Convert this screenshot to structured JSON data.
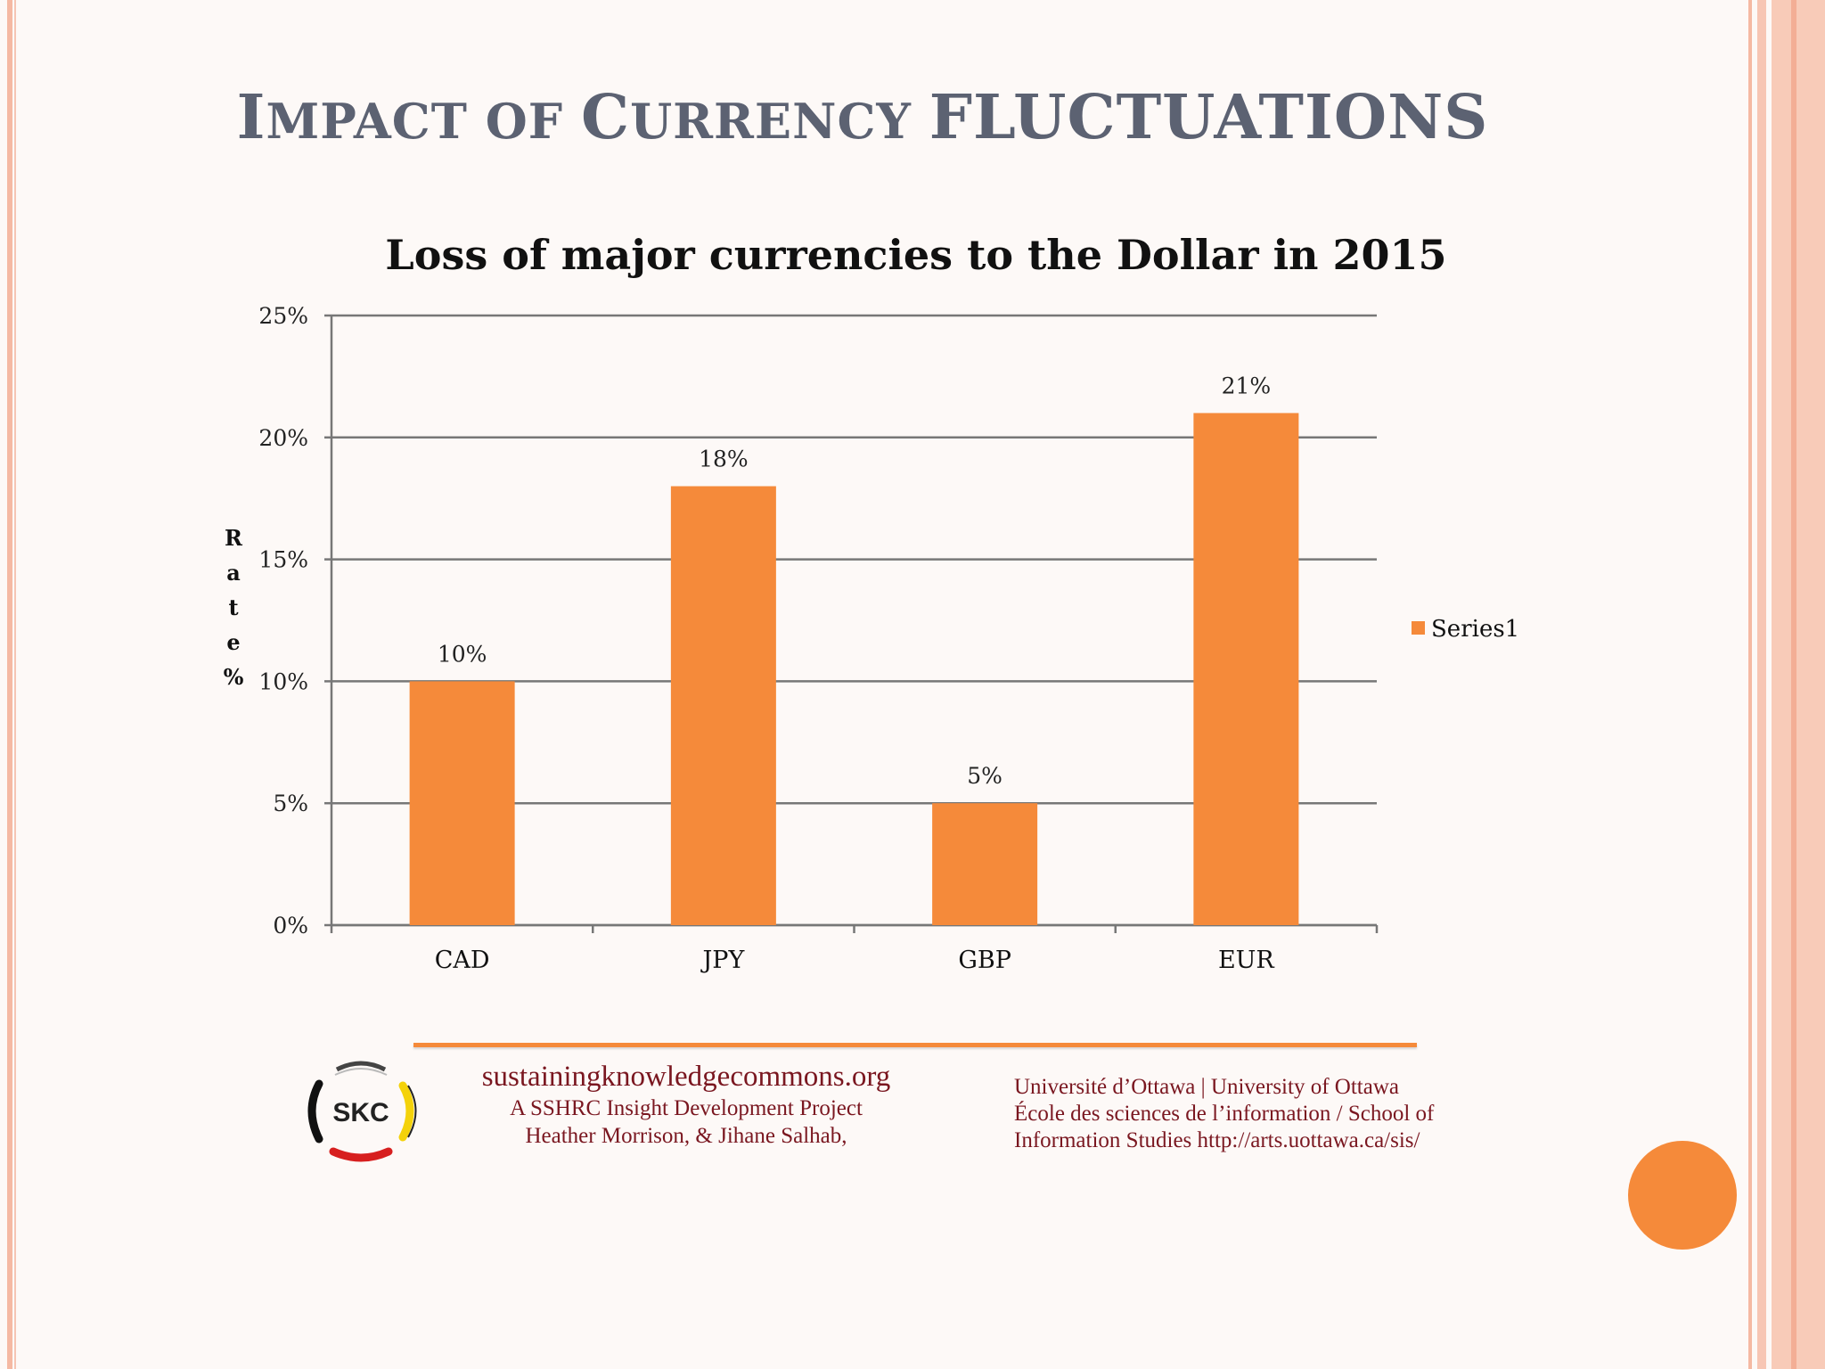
{
  "slide": {
    "title_parts": [
      "I",
      "MPACT OF ",
      "C",
      "URRENCY ",
      "FLUCTUATIONS"
    ]
  },
  "chart_data": {
    "type": "bar",
    "title": "Loss of major currencies to the Dollar in 2015",
    "categories": [
      "CAD",
      "JPY",
      "GBP",
      "EUR"
    ],
    "series": [
      {
        "name": "Series1",
        "values": [
          10,
          18,
          5,
          21
        ],
        "color": "#f58a3a"
      }
    ],
    "data_labels": [
      "10%",
      "18%",
      "5%",
      "21%"
    ],
    "ylabel": "Rate %",
    "ylim": [
      0,
      25
    ],
    "y_ticks": [
      0,
      5,
      10,
      15,
      20,
      25
    ],
    "y_tick_labels": [
      "0%",
      "5%",
      "10%",
      "15%",
      "20%",
      "25%"
    ],
    "grid": true,
    "legend_position": "right"
  },
  "footer": {
    "logo_text": "SKC",
    "site": "sustainingknowledgecommons.org",
    "line1": "A SSHRC Insight Development Project",
    "line2": "Heather Morrison, & Jihane Salhab,",
    "right_line1": "Université d’Ottawa | University of Ottawa",
    "right_line2": "École des sciences de l’information / School of",
    "right_line3": "Information Studies http://arts.uottawa.ca/sis/"
  },
  "colors": {
    "accent": "#f58a3a",
    "title": "#5c6272",
    "footer_text": "#7a1720"
  }
}
